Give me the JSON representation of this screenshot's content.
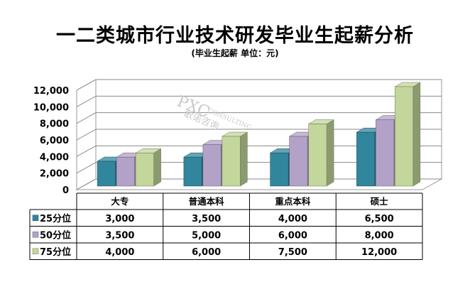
{
  "chart_data": {
    "type": "bar",
    "title": "一二类城市行业技术研发毕业生起薪分析",
    "subtitle": "(毕业生起薪 单位：元)",
    "categories": [
      "大专",
      "普通本科",
      "重点本科",
      "硕士"
    ],
    "series": [
      {
        "name": "25分位",
        "values": [
          3000,
          3500,
          4000,
          6500
        ],
        "color": "#31859C"
      },
      {
        "name": "50分位",
        "values": [
          3500,
          5000,
          6000,
          8000
        ],
        "color": "#B3A2C7"
      },
      {
        "name": "75分位",
        "values": [
          4000,
          6000,
          7500,
          12000
        ],
        "color": "#C3D69B"
      }
    ],
    "table": {
      "rows": [
        [
          "3,000",
          "3,500",
          "4,000",
          "6,500"
        ],
        [
          "3,500",
          "5,000",
          "6,000",
          "8,000"
        ],
        [
          "4,000",
          "6,000",
          "7,500",
          "12,000"
        ]
      ]
    },
    "yticks": [
      "0",
      "2,000",
      "4,000",
      "6,000",
      "8,000",
      "10,000",
      "12,000"
    ],
    "ylim": [
      0,
      12000
    ],
    "grid": true,
    "style": "3d-column",
    "watermark": {
      "main": "PXC",
      "sub": "CONSULTING",
      "cn": "歌诺咨询"
    }
  }
}
